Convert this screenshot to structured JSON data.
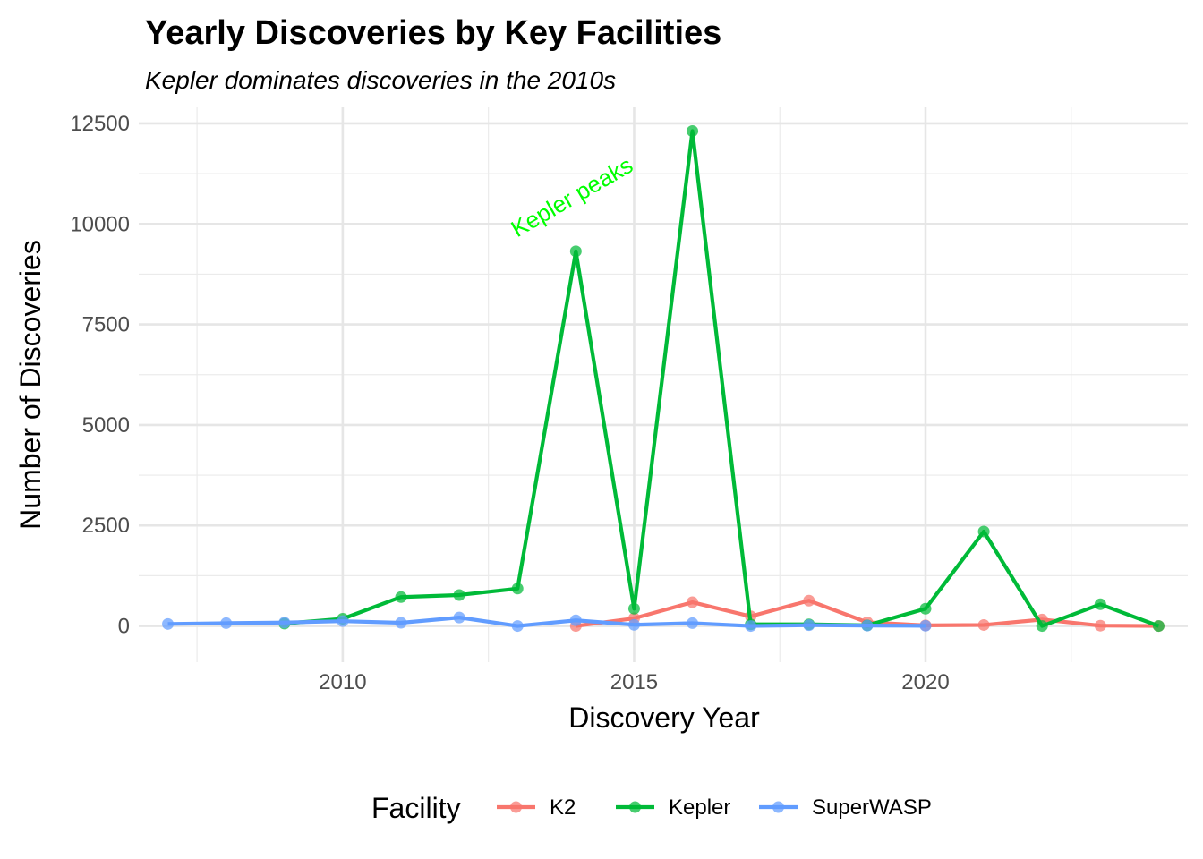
{
  "chart_data": {
    "type": "line",
    "title": "Yearly Discoveries by Key Facilities",
    "subtitle": "Kepler dominates discoveries in the 2010s",
    "xlabel": "Discovery Year",
    "ylabel": "Number of Discoveries",
    "xlim": [
      2006.5,
      2024.5
    ],
    "ylim": [
      -900,
      12900
    ],
    "x_ticks": [
      2010,
      2015,
      2020
    ],
    "y_ticks": [
      0,
      2500,
      5000,
      7500,
      10000,
      12500
    ],
    "x_tick_labels": [
      "2010",
      "2015",
      "2020"
    ],
    "y_tick_labels": [
      "0",
      "2500",
      "5000",
      "7500",
      "10000",
      "12500"
    ],
    "grid": true,
    "legend": {
      "title": "Facility",
      "position": "bottom"
    },
    "series": [
      {
        "name": "K2",
        "color": "#F8766D",
        "x": [
          2014,
          2015,
          2016,
          2017,
          2018,
          2019,
          2020,
          2021,
          2022,
          2023,
          2024
        ],
        "y": [
          0,
          190,
          590,
          240,
          630,
          90,
          15,
          25,
          160,
          8,
          0
        ]
      },
      {
        "name": "Kepler",
        "color": "#00BA38",
        "x": [
          2009,
          2010,
          2011,
          2012,
          2013,
          2014,
          2015,
          2016,
          2017,
          2018,
          2019,
          2020,
          2021,
          2022,
          2023,
          2024
        ],
        "y": [
          60,
          180,
          720,
          770,
          930,
          9320,
          430,
          12310,
          40,
          40,
          15,
          430,
          2350,
          0,
          540,
          0
        ]
      },
      {
        "name": "SuperWASP",
        "color": "#619CFF",
        "x": [
          2007,
          2008,
          2009,
          2010,
          2011,
          2012,
          2013,
          2014,
          2015,
          2016,
          2017,
          2018,
          2019,
          2020
        ],
        "y": [
          50,
          70,
          85,
          120,
          80,
          210,
          0,
          140,
          30,
          70,
          0,
          20,
          10,
          5
        ]
      }
    ],
    "annotations": [
      {
        "text": "Kepler peaks",
        "x": 2014,
        "y": 10500,
        "color": "#00FF00"
      }
    ]
  }
}
